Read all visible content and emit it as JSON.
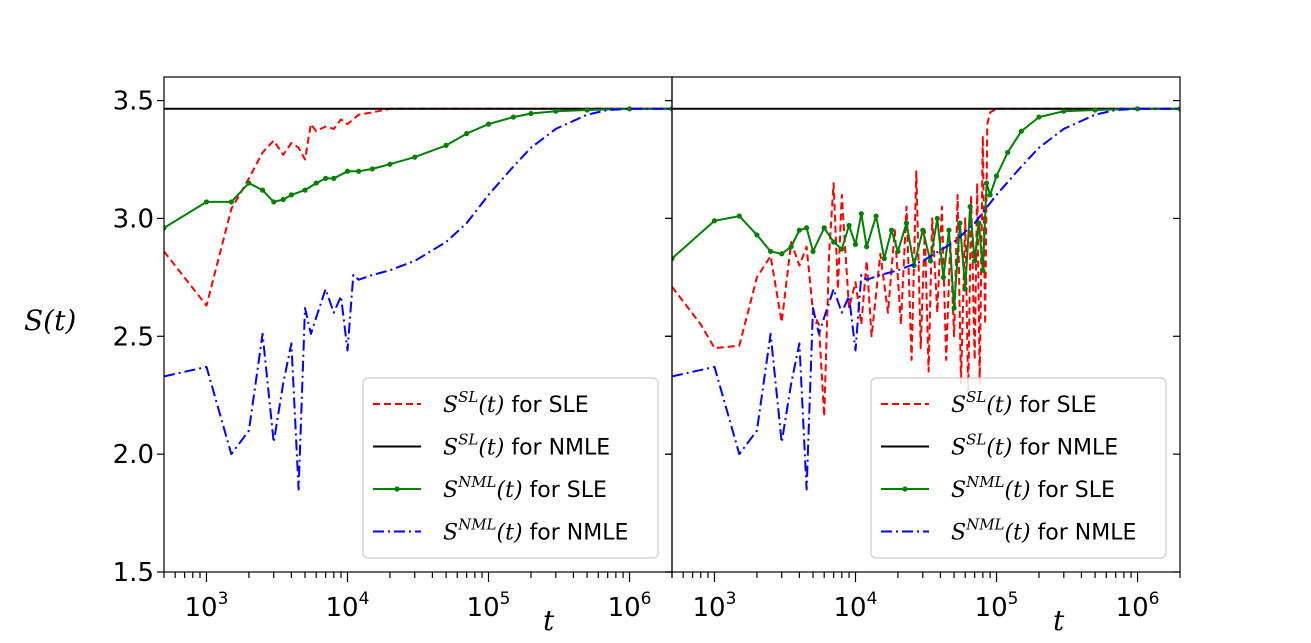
{
  "chart_data": [
    {
      "type": "line",
      "panel": "left",
      "xscale": "log",
      "xlim": [
        500,
        2000000
      ],
      "ylim": [
        1.5,
        3.6
      ],
      "ylabel": "S(t)",
      "xlabel": "t",
      "yticks": [
        "1.5",
        "2.0",
        "2.5",
        "3.0",
        "3.5"
      ],
      "xticks": [
        {
          "base": "10",
          "exp": "3",
          "value": 1000
        },
        {
          "base": "10",
          "exp": "4",
          "value": 10000
        },
        {
          "base": "10",
          "exp": "5",
          "value": 100000
        },
        {
          "base": "10",
          "exp": "6",
          "value": 1000000
        }
      ],
      "legend_position": "lower right",
      "series": [
        {
          "name": "S^{SL}(t) for SLE",
          "legend": {
            "sym": "S",
            "sup": "SL",
            "arg": "(t)",
            "rest": " for SLE"
          },
          "color": "#ff0000",
          "style": "dashed",
          "x": [
            500,
            1000,
            1500,
            2000,
            2500,
            3000,
            3500,
            4000,
            4500,
            5000,
            5500,
            6000,
            7000,
            8000,
            9000,
            10000,
            12000,
            15000,
            20000,
            30000,
            50000,
            100000,
            1000000,
            2000000
          ],
          "y": [
            2.86,
            2.63,
            3.04,
            3.17,
            3.28,
            3.33,
            3.27,
            3.32,
            3.3,
            3.25,
            3.4,
            3.37,
            3.39,
            3.38,
            3.42,
            3.4,
            3.44,
            3.45,
            3.465,
            3.465,
            3.465,
            3.465,
            3.465,
            3.465
          ]
        },
        {
          "name": "S^{SL}(t) for NMLE",
          "legend": {
            "sym": "S",
            "sup": "SL",
            "arg": "(t)",
            "rest": " for NMLE"
          },
          "color": "#000000",
          "style": "solid",
          "x": [
            500,
            1000,
            10000,
            100000,
            1000000,
            2000000
          ],
          "y": [
            3.465,
            3.465,
            3.465,
            3.465,
            3.465,
            3.465
          ]
        },
        {
          "name": "S^{NML}(t) for SLE",
          "legend": {
            "sym": "S",
            "sup": "NML",
            "arg": "(t)",
            "rest": " for SLE"
          },
          "color": "#008000",
          "style": "solid-marker",
          "x": [
            500,
            1000,
            1500,
            2000,
            2500,
            3000,
            3500,
            4000,
            5000,
            6000,
            7000,
            8000,
            10000,
            12000,
            15000,
            20000,
            30000,
            50000,
            70000,
            100000,
            150000,
            200000,
            300000,
            500000,
            1000000,
            2000000
          ],
          "y": [
            2.96,
            3.07,
            3.07,
            3.15,
            3.12,
            3.07,
            3.08,
            3.1,
            3.12,
            3.15,
            3.17,
            3.17,
            3.2,
            3.2,
            3.21,
            3.23,
            3.26,
            3.31,
            3.36,
            3.4,
            3.43,
            3.445,
            3.455,
            3.46,
            3.465,
            3.465
          ]
        },
        {
          "name": "S^{NML}(t) for NMLE",
          "legend": {
            "sym": "S",
            "sup": "NML",
            "arg": "(t)",
            "rest": " for NMLE"
          },
          "color": "#0000ff",
          "style": "dashdot",
          "x": [
            500,
            1000,
            1500,
            2000,
            2500,
            3000,
            3500,
            4000,
            4500,
            5000,
            5500,
            6000,
            7000,
            8000,
            9000,
            10000,
            11000,
            12000,
            15000,
            20000,
            30000,
            50000,
            70000,
            100000,
            150000,
            200000,
            300000,
            500000,
            700000,
            1000000,
            2000000
          ],
          "y": [
            2.33,
            2.37,
            2.0,
            2.1,
            2.51,
            2.05,
            2.3,
            2.47,
            1.85,
            2.62,
            2.51,
            2.58,
            2.7,
            2.6,
            2.67,
            2.44,
            2.76,
            2.74,
            2.76,
            2.78,
            2.82,
            2.9,
            2.98,
            3.1,
            3.22,
            3.3,
            3.38,
            3.44,
            3.46,
            3.465,
            3.465
          ]
        }
      ]
    },
    {
      "type": "line",
      "panel": "right",
      "xscale": "log",
      "xlim": [
        500,
        2000000
      ],
      "ylim": [
        1.5,
        3.6
      ],
      "xlabel": "t",
      "xticks": [
        {
          "base": "10",
          "exp": "3",
          "value": 1000
        },
        {
          "base": "10",
          "exp": "4",
          "value": 10000
        },
        {
          "base": "10",
          "exp": "5",
          "value": 100000
        },
        {
          "base": "10",
          "exp": "6",
          "value": 1000000
        }
      ],
      "legend_position": "lower right",
      "series": [
        {
          "name": "S^{SL}(t) for SLE",
          "legend": {
            "sym": "S",
            "sup": "SL",
            "arg": "(t)",
            "rest": " for SLE"
          },
          "color": "#ff0000",
          "style": "dashed",
          "x": [
            500,
            800,
            1000,
            1500,
            2000,
            2500,
            3000,
            3500,
            4000,
            4500,
            5000,
            5500,
            6000,
            6500,
            7000,
            7500,
            8000,
            9000,
            10000,
            11000,
            12000,
            13000,
            15000,
            17000,
            19000,
            21000,
            23000,
            25000,
            27000,
            29000,
            31000,
            33000,
            35000,
            38000,
            41000,
            44000,
            47000,
            50000,
            53000,
            56000,
            60000,
            63000,
            66000,
            70000,
            73000,
            76000,
            80000,
            83000,
            86000,
            90000,
            100000,
            120000,
            200000,
            1000000,
            2000000
          ],
          "y": [
            2.71,
            2.55,
            2.45,
            2.46,
            2.75,
            2.84,
            2.56,
            2.9,
            2.8,
            2.88,
            2.6,
            2.55,
            2.16,
            2.85,
            3.15,
            2.7,
            3.1,
            2.62,
            2.73,
            2.55,
            2.82,
            2.5,
            2.85,
            2.6,
            2.95,
            2.55,
            3.05,
            2.4,
            3.2,
            2.45,
            2.95,
            2.35,
            3.0,
            2.6,
            3.05,
            2.4,
            2.9,
            2.5,
            3.1,
            2.3,
            3.0,
            2.25,
            3.1,
            2.4,
            3.15,
            2.3,
            3.35,
            2.55,
            3.4,
            3.45,
            3.465,
            3.465,
            3.465,
            3.465,
            3.465
          ]
        },
        {
          "name": "S^{SL}(t) for NMLE",
          "legend": {
            "sym": "S",
            "sup": "SL",
            "arg": "(t)",
            "rest": " for NMLE"
          },
          "color": "#000000",
          "style": "solid",
          "x": [
            500,
            1000,
            10000,
            100000,
            1000000,
            2000000
          ],
          "y": [
            3.465,
            3.465,
            3.465,
            3.465,
            3.465,
            3.465
          ]
        },
        {
          "name": "S^{NML}(t) for SLE",
          "legend": {
            "sym": "S",
            "sup": "NML",
            "arg": "(t)",
            "rest": " for SLE"
          },
          "color": "#008000",
          "style": "solid-marker",
          "x": [
            500,
            1000,
            1500,
            2000,
            2500,
            3000,
            3500,
            4000,
            4500,
            5000,
            6000,
            7000,
            8000,
            9000,
            10000,
            11000,
            12000,
            14000,
            16000,
            18000,
            20000,
            23000,
            26000,
            30000,
            34000,
            38000,
            42000,
            46000,
            50000,
            55000,
            60000,
            65000,
            70000,
            75000,
            80000,
            85000,
            90000,
            100000,
            120000,
            150000,
            200000,
            300000,
            500000,
            1000000,
            2000000
          ],
          "y": [
            2.83,
            2.99,
            3.01,
            2.93,
            2.86,
            2.85,
            2.88,
            2.95,
            2.96,
            2.86,
            2.96,
            2.9,
            2.87,
            2.97,
            2.89,
            3.02,
            2.88,
            3.01,
            2.83,
            2.95,
            2.86,
            2.98,
            2.8,
            2.95,
            2.82,
            3.0,
            2.75,
            2.95,
            2.62,
            2.98,
            2.7,
            3.05,
            2.82,
            2.98,
            2.78,
            3.15,
            3.1,
            3.18,
            3.28,
            3.37,
            3.43,
            3.455,
            3.46,
            3.465,
            3.465
          ]
        },
        {
          "name": "S^{NML}(t) for NMLE",
          "legend": {
            "sym": "S",
            "sup": "NML",
            "arg": "(t)",
            "rest": " for NMLE"
          },
          "color": "#0000ff",
          "style": "dashdot",
          "x": [
            500,
            1000,
            1500,
            2000,
            2500,
            3000,
            3500,
            4000,
            4500,
            5000,
            5500,
            6000,
            7000,
            8000,
            9000,
            10000,
            11000,
            12000,
            15000,
            20000,
            30000,
            50000,
            70000,
            100000,
            150000,
            200000,
            300000,
            500000,
            700000,
            1000000,
            2000000
          ],
          "y": [
            2.33,
            2.37,
            2.0,
            2.1,
            2.51,
            2.05,
            2.3,
            2.47,
            1.85,
            2.62,
            2.51,
            2.58,
            2.7,
            2.6,
            2.67,
            2.44,
            2.76,
            2.74,
            2.76,
            2.78,
            2.82,
            2.9,
            2.98,
            3.1,
            3.22,
            3.3,
            3.38,
            3.44,
            3.46,
            3.465,
            3.465
          ]
        }
      ]
    }
  ]
}
